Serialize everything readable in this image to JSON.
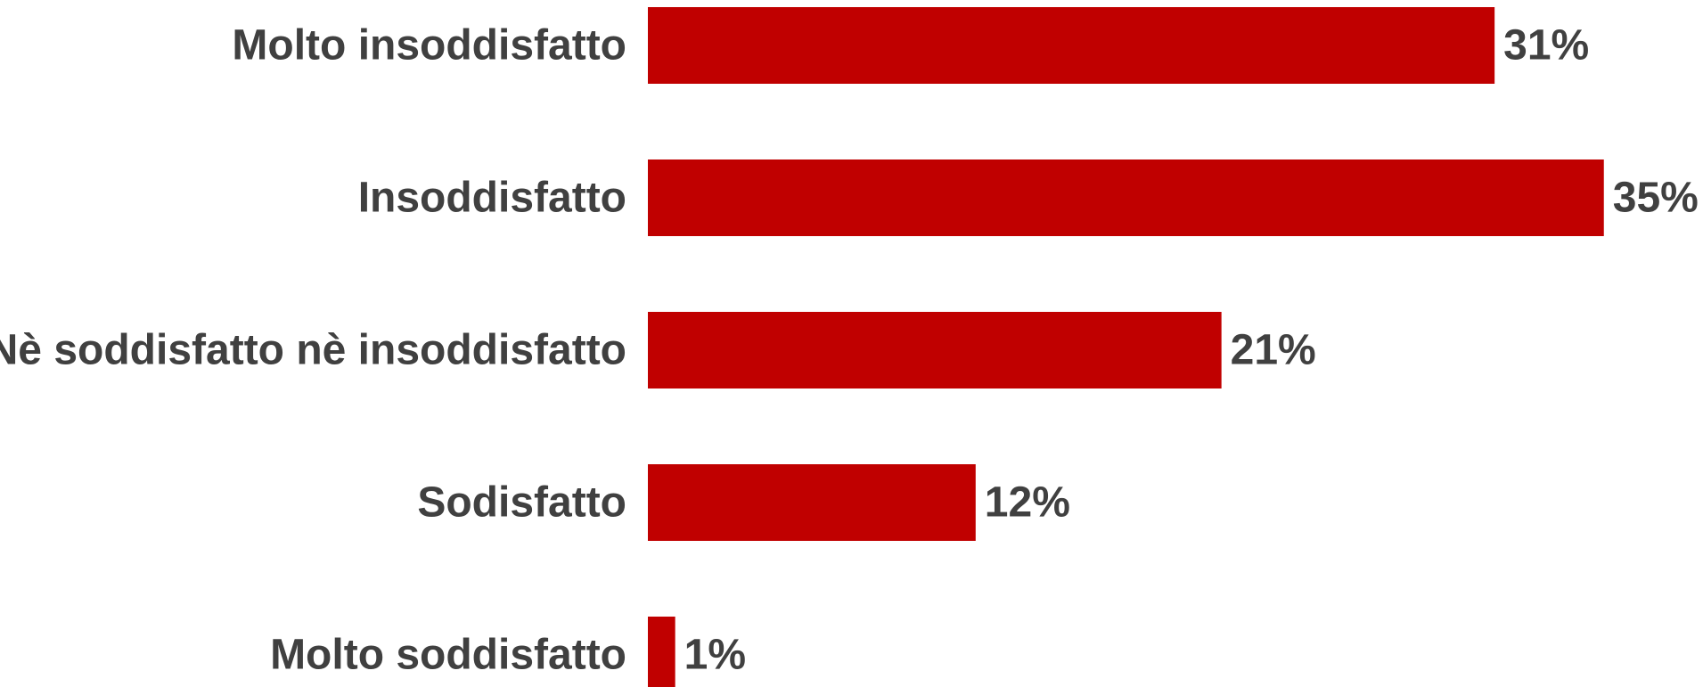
{
  "chart_data": {
    "type": "bar",
    "orientation": "horizontal",
    "categories": [
      "Molto insoddisfatto",
      "Insoddisfatto",
      "Nè soddisfatto nè insoddisfatto",
      "Sodisfatto",
      "Molto soddisfatto"
    ],
    "values": [
      31,
      35,
      21,
      12,
      1
    ],
    "value_labels": [
      "31%",
      "35%",
      "21%",
      "12%",
      "1%"
    ],
    "unit": "%",
    "xlim": [
      0,
      35
    ],
    "grid": false,
    "legend": "none",
    "bar_color": "#C00000",
    "text_color": "#404040",
    "title": "",
    "xlabel": "",
    "ylabel": ""
  }
}
